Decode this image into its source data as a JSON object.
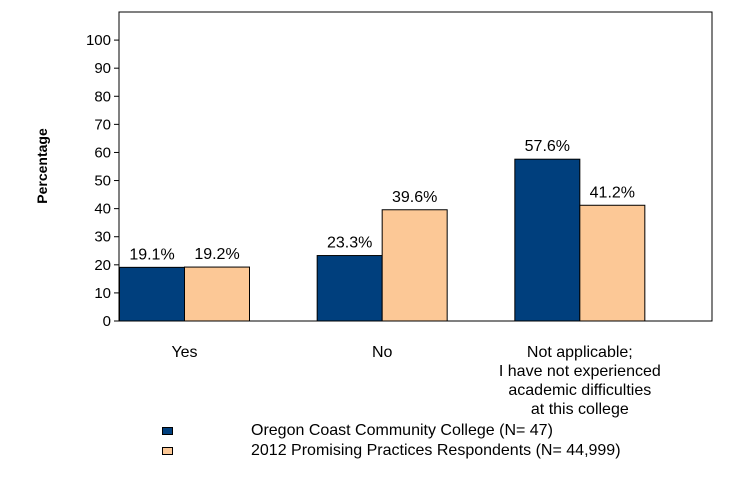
{
  "chart_data": {
    "type": "bar",
    "title": "",
    "xlabel": "",
    "ylabel": "Percentage",
    "ylim": [
      0,
      110
    ],
    "yticks": [
      0,
      10,
      20,
      30,
      40,
      50,
      60,
      70,
      80,
      90,
      100
    ],
    "categories": [
      [
        "Yes"
      ],
      [
        "No"
      ],
      [
        "Not applicable;",
        "I have not experienced",
        "academic difficulties",
        "at this college"
      ]
    ],
    "series": [
      {
        "name": "Oregon Coast Community College  (N= 47)",
        "color": "#003f7d",
        "values": [
          19.1,
          23.3,
          57.6
        ],
        "labels": [
          "19.1%",
          "23.3%",
          "57.6%"
        ]
      },
      {
        "name": "2012 Promising Practices Respondents (N= 44,999)",
        "color": "#fcc896",
        "values": [
          19.2,
          39.6,
          41.2
        ],
        "labels": [
          "19.2%",
          "39.6%",
          "41.2%"
        ]
      }
    ],
    "grid": false,
    "legend": "bottom"
  }
}
